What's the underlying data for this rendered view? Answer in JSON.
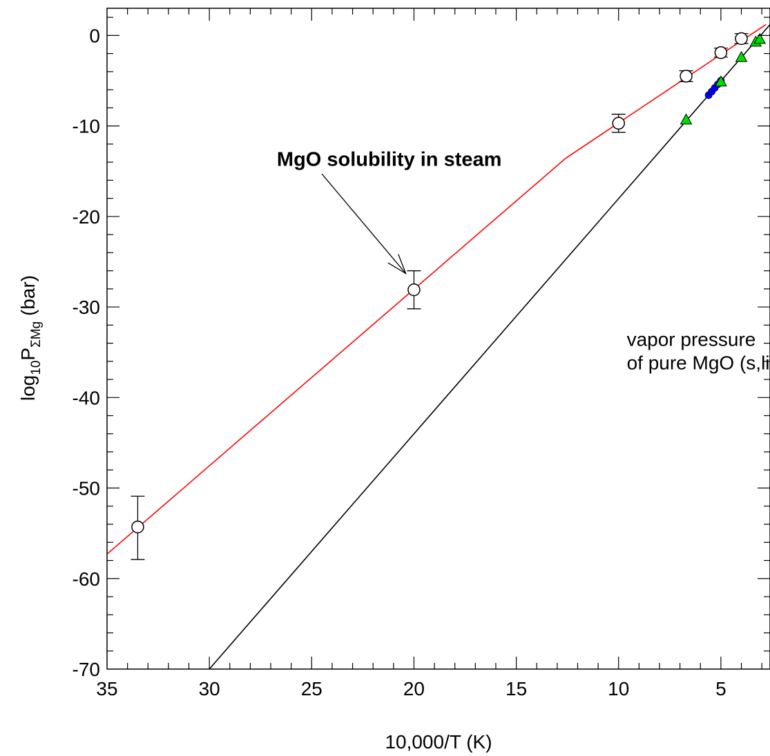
{
  "chart_data": {
    "type": "scatter",
    "title": "",
    "xlabel": "10,000/T (K)",
    "ylabel": {
      "base": "log",
      "sub1": "10",
      "main": "P",
      "sub2": "ΣMg",
      "unit": " (bar)"
    },
    "xlim": [
      35,
      2.6
    ],
    "ylim": [
      -70,
      3
    ],
    "x_reversed": true,
    "x_ticks": [
      35,
      30,
      25,
      20,
      15,
      10,
      5
    ],
    "x_tick_labels": [
      "35",
      "30",
      "25",
      "20",
      "15",
      "10",
      "5"
    ],
    "y_ticks": [
      0,
      -10,
      -20,
      -30,
      -40,
      -50,
      -60,
      -70
    ],
    "y_tick_labels": [
      "0",
      "-10",
      "-20",
      "-30",
      "-40",
      "-50",
      "-60",
      "-70"
    ],
    "grid": false,
    "series": [
      {
        "kind": "line",
        "color": "#ff0000",
        "points": [
          [
            35,
            -57.3
          ],
          [
            12.6,
            -13.6
          ],
          [
            5.0,
            -2.1
          ],
          [
            2.8,
            1.2
          ]
        ]
      },
      {
        "kind": "line",
        "color": "#000000",
        "points": [
          [
            30,
            -70
          ],
          [
            2.6,
            1.2
          ]
        ]
      },
      {
        "kind": "points",
        "marker": "open-circle",
        "color": "#000000",
        "points": [
          {
            "x": 33.5,
            "y": -54.3,
            "ylo": -57.9,
            "yhi": -50.9
          },
          {
            "x": 20.0,
            "y": -28.1,
            "ylo": -30.2,
            "yhi": -26.0
          },
          {
            "x": 10.0,
            "y": -9.7,
            "ylo": -10.7,
            "yhi": -8.7
          },
          {
            "x": 6.7,
            "y": -4.5,
            "ylo": -5.1,
            "yhi": -3.9
          },
          {
            "x": 5.0,
            "y": -1.9,
            "ylo": -2.4,
            "yhi": -1.4
          },
          {
            "x": 4.0,
            "y": -0.35,
            "ylo": -0.9,
            "yhi": 0.2
          }
        ]
      },
      {
        "kind": "points",
        "marker": "filled-circle",
        "color": "#0000ff",
        "points": [
          {
            "x": 5.6,
            "y": -6.6
          },
          {
            "x": 5.45,
            "y": -6.2
          },
          {
            "x": 5.3,
            "y": -5.8
          },
          {
            "x": 5.15,
            "y": -5.4
          },
          {
            "x": 5.0,
            "y": -5.0
          }
        ]
      },
      {
        "kind": "points",
        "marker": "filled-triangle",
        "color": "#00dd00",
        "points": [
          {
            "x": 6.7,
            "y": -9.3
          },
          {
            "x": 5.0,
            "y": -5.1
          },
          {
            "x": 4.0,
            "y": -2.4
          },
          {
            "x": 3.3,
            "y": -0.7
          },
          {
            "x": 3.1,
            "y": -0.4
          }
        ]
      }
    ],
    "annotations": [
      {
        "text": "MgO solubility in steam",
        "bold": true,
        "x": 26.7,
        "y": -14.4,
        "arrow_from": [
          24.5,
          -15.3
        ],
        "arrow_to": [
          20.4,
          -26.3
        ]
      },
      {
        "lines": [
          "vapor pressure",
          "of pure MgO (s,liq)"
        ],
        "bold": false,
        "x": 9.6,
        "y": -34.3
      }
    ]
  }
}
